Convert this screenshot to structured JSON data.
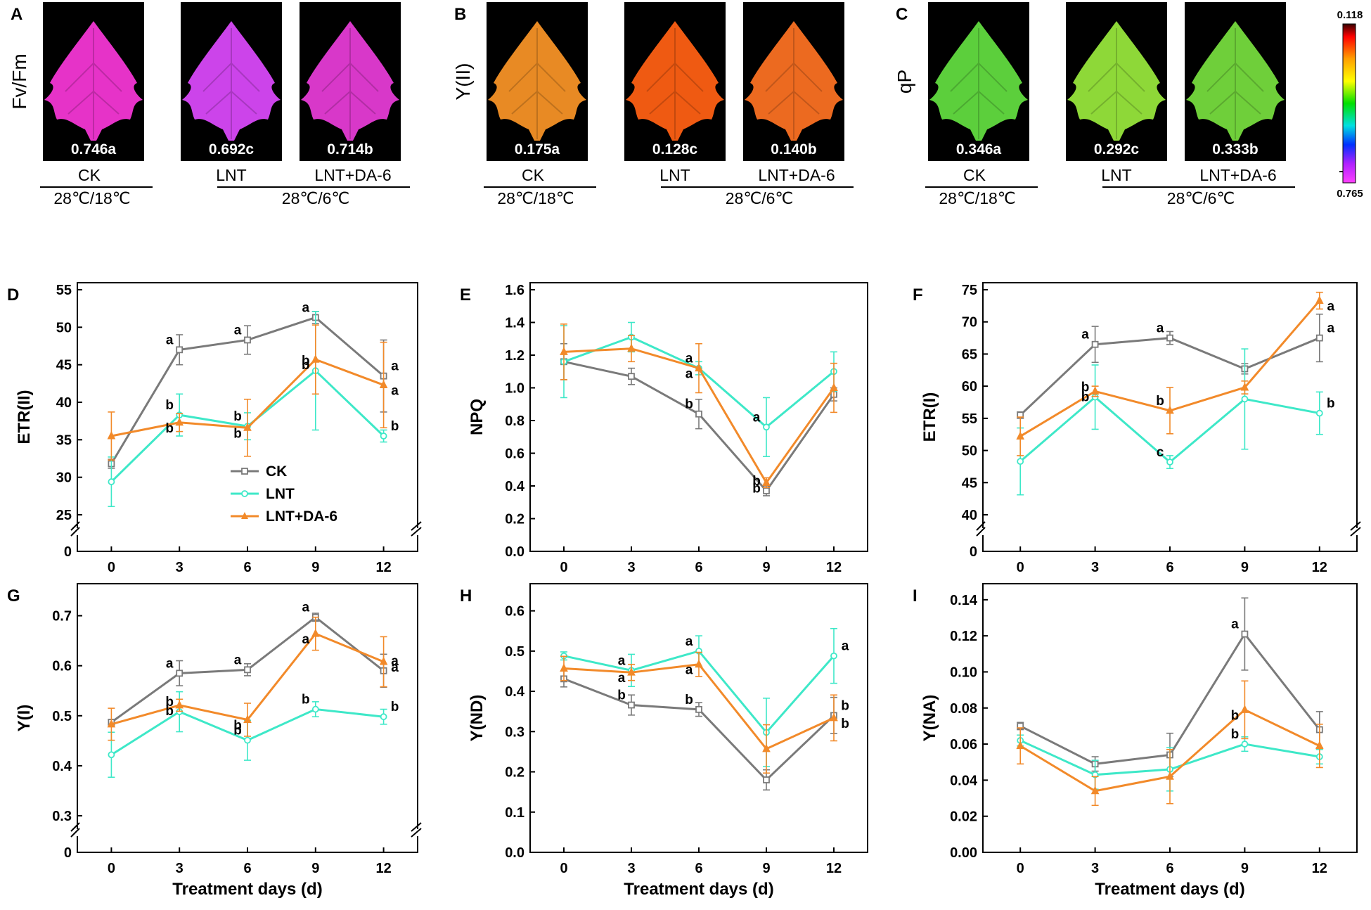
{
  "colors": {
    "CK": "#7a7a7a",
    "LNT": "#3ee8c8",
    "LNT+DA-6": "#f28a2a"
  },
  "images": {
    "panels": [
      {
        "label": "A",
        "title": "Fv/Fm",
        "values": [
          "0.746a",
          "0.692c",
          "0.714b"
        ],
        "fills": [
          "#e633c8",
          "#cc44ea",
          "#d838c9"
        ]
      },
      {
        "label": "B",
        "title": "Y(II)",
        "values": [
          "0.175a",
          "0.128c",
          "0.140b"
        ],
        "fills": [
          "#e88a24",
          "#ef5a12",
          "#ec6a20"
        ]
      },
      {
        "label": "C",
        "title": "qP",
        "values": [
          "0.346a",
          "0.292c",
          "0.333b"
        ],
        "fills": [
          "#5ccf3c",
          "#8ed838",
          "#6fcf3a"
        ]
      }
    ],
    "conditions": {
      "ck": "CK",
      "lnt": "LNT",
      "lntda": "LNT+DA-6",
      "ck_temp": "28℃/18℃",
      "lnt_temp": "28℃/6℃"
    },
    "colorbar": {
      "top": "0.118",
      "bottom": "0.765"
    }
  },
  "chart_data": [
    {
      "type": "line",
      "label": "D",
      "ylabel": "ETR(II)",
      "xlabel": "",
      "x": [
        0,
        3,
        6,
        9,
        12
      ],
      "xticks": [
        "0",
        "3",
        "6",
        "9",
        "12"
      ],
      "ylim": [
        25,
        55
      ],
      "yticks": [
        25,
        30,
        35,
        40,
        45,
        50,
        55
      ],
      "axis_break": true,
      "legend": [
        "CK",
        "LNT",
        "LNT+DA-6"
      ],
      "legend_position": "lower-middle",
      "series": [
        {
          "name": "CK",
          "values": [
            31.8,
            47.0,
            48.3,
            51.3,
            43.5
          ],
          "errors": [
            0.6,
            2.0,
            1.9,
            0.8,
            4.8
          ],
          "sig": [
            "",
            "a",
            "a",
            "a",
            "a"
          ]
        },
        {
          "name": "LNT",
          "values": [
            29.4,
            38.3,
            36.8,
            44.2,
            35.5
          ],
          "errors": [
            3.3,
            2.8,
            1.8,
            7.9,
            0.8
          ],
          "sig": [
            "",
            "b",
            "b",
            "b",
            "b"
          ]
        },
        {
          "name": "LNT+DA-6",
          "values": [
            35.5,
            37.3,
            36.6,
            45.7,
            42.3
          ],
          "errors": [
            3.2,
            1.2,
            3.8,
            4.6,
            5.7
          ],
          "sig": [
            "",
            "b",
            "b",
            "b",
            "a"
          ]
        }
      ]
    },
    {
      "type": "line",
      "label": "E",
      "ylabel": "NPQ",
      "xlabel": "",
      "x": [
        0,
        3,
        6,
        9,
        12
      ],
      "xticks": [
        "0",
        "3",
        "6",
        "9",
        "12"
      ],
      "ylim": [
        0.0,
        1.6
      ],
      "yticks": [
        "0.0",
        "0.2",
        "0.4",
        "0.6",
        "0.8",
        "1.0",
        "1.2",
        "1.4",
        "1.6"
      ],
      "axis_break": false,
      "series": [
        {
          "name": "CK",
          "values": [
            1.16,
            1.07,
            0.84,
            0.37,
            0.96
          ],
          "errors": [
            0.11,
            0.05,
            0.09,
            0.03,
            0.04
          ],
          "sig": [
            "",
            "",
            "b",
            "b",
            ""
          ]
        },
        {
          "name": "LNT",
          "values": [
            1.16,
            1.31,
            1.12,
            0.76,
            1.1
          ],
          "errors": [
            0.22,
            0.09,
            0.04,
            0.18,
            0.12
          ],
          "sig": [
            "",
            "",
            "a",
            "a",
            ""
          ]
        },
        {
          "name": "LNT+DA-6",
          "values": [
            1.22,
            1.24,
            1.12,
            0.42,
            1.0
          ],
          "errors": [
            0.17,
            0.08,
            0.15,
            0.03,
            0.15
          ],
          "sig": [
            "",
            "",
            "a",
            "b",
            ""
          ]
        }
      ]
    },
    {
      "type": "line",
      "label": "F",
      "ylabel": "ETR(I)",
      "xlabel": "",
      "x": [
        0,
        3,
        6,
        9,
        12
      ],
      "xticks": [
        "0",
        "3",
        "6",
        "9",
        "12"
      ],
      "ylim": [
        40,
        75
      ],
      "yticks": [
        40,
        45,
        50,
        55,
        60,
        65,
        70,
        75
      ],
      "axis_break": true,
      "series": [
        {
          "name": "CK",
          "values": [
            55.5,
            66.5,
            67.5,
            62.7,
            67.5
          ],
          "errors": [
            0.5,
            2.8,
            1.0,
            0.8,
            3.7
          ],
          "sig": [
            "",
            "a",
            "a",
            "",
            "a"
          ]
        },
        {
          "name": "LNT",
          "values": [
            48.3,
            58.3,
            48.2,
            58.0,
            55.8
          ],
          "errors": [
            5.2,
            5.0,
            1.0,
            7.8,
            3.3
          ],
          "sig": [
            "",
            "b",
            "c",
            "",
            "b"
          ]
        },
        {
          "name": "LNT+DA-6",
          "values": [
            52.2,
            59.2,
            56.2,
            59.8,
            73.3
          ],
          "errors": [
            3.0,
            0.8,
            3.6,
            1.0,
            1.3
          ],
          "sig": [
            "",
            "b",
            "b",
            "",
            "a"
          ]
        }
      ]
    },
    {
      "type": "line",
      "label": "G",
      "ylabel": "Y(I)",
      "xlabel": "Treatment days (d)",
      "x": [
        0,
        3,
        6,
        9,
        12
      ],
      "xticks": [
        "0",
        "3",
        "6",
        "9",
        "12"
      ],
      "ylim": [
        0.3,
        0.75
      ],
      "yticks": [
        "0.3",
        "0.4",
        "0.5",
        "0.6",
        "0.7"
      ],
      "axis_break": true,
      "series": [
        {
          "name": "CK",
          "values": [
            0.487,
            0.585,
            0.592,
            0.697,
            0.59
          ],
          "errors": [
            0.005,
            0.025,
            0.012,
            0.008,
            0.033
          ],
          "sig": [
            "",
            "a",
            "a",
            "a",
            "a"
          ]
        },
        {
          "name": "LNT",
          "values": [
            0.422,
            0.508,
            0.451,
            0.513,
            0.498
          ],
          "errors": [
            0.045,
            0.04,
            0.04,
            0.015,
            0.015
          ],
          "sig": [
            "",
            "b",
            "b",
            "b",
            "b"
          ]
        },
        {
          "name": "LNT+DA-6",
          "values": [
            0.483,
            0.521,
            0.492,
            0.664,
            0.608
          ],
          "errors": [
            0.032,
            0.012,
            0.033,
            0.033,
            0.05
          ],
          "sig": [
            "",
            "b",
            "b",
            "a",
            "a"
          ]
        }
      ]
    },
    {
      "type": "line",
      "label": "H",
      "ylabel": "Y(ND)",
      "xlabel": "Treatment days (d)",
      "x": [
        0,
        3,
        6,
        9,
        12
      ],
      "xticks": [
        "0",
        "3",
        "6",
        "9",
        "12"
      ],
      "ylim": [
        0.0,
        0.65
      ],
      "yticks": [
        "0.0",
        "0.1",
        "0.2",
        "0.3",
        "0.4",
        "0.5",
        "0.6"
      ],
      "axis_break": false,
      "series": [
        {
          "name": "CK",
          "values": [
            0.431,
            0.366,
            0.355,
            0.18,
            0.34
          ],
          "errors": [
            0.02,
            0.025,
            0.017,
            0.025,
            0.045
          ],
          "sig": [
            "",
            "b",
            "b",
            "",
            "b"
          ]
        },
        {
          "name": "LNT",
          "values": [
            0.488,
            0.452,
            0.5,
            0.298,
            0.488
          ],
          "errors": [
            0.01,
            0.04,
            0.038,
            0.085,
            0.068
          ],
          "sig": [
            "",
            "a",
            "a",
            "",
            "a"
          ]
        },
        {
          "name": "LNT+DA-6",
          "values": [
            0.457,
            0.447,
            0.467,
            0.257,
            0.334
          ],
          "errors": [
            0.03,
            0.02,
            0.03,
            0.06,
            0.057
          ],
          "sig": [
            "",
            "a",
            "a",
            "",
            "b"
          ]
        }
      ]
    },
    {
      "type": "line",
      "label": "I",
      "ylabel": "Y(NA)",
      "xlabel": "Treatment days (d)",
      "x": [
        0,
        3,
        6,
        9,
        12
      ],
      "xticks": [
        "0",
        "3",
        "6",
        "9",
        "12"
      ],
      "ylim": [
        0.0,
        0.145
      ],
      "yticks": [
        "0.00",
        "0.02",
        "0.04",
        "0.06",
        "0.08",
        "0.10",
        "0.12",
        "0.14"
      ],
      "axis_break": false,
      "series": [
        {
          "name": "CK",
          "values": [
            0.07,
            0.049,
            0.054,
            0.121,
            0.068
          ],
          "errors": [
            0.002,
            0.004,
            0.012,
            0.02,
            0.01
          ],
          "sig": [
            "",
            "",
            "",
            "a",
            ""
          ]
        },
        {
          "name": "LNT",
          "values": [
            0.062,
            0.043,
            0.046,
            0.06,
            0.053
          ],
          "errors": [
            0.003,
            0.008,
            0.012,
            0.004,
            0.004
          ],
          "sig": [
            "",
            "",
            "",
            "b",
            ""
          ]
        },
        {
          "name": "LNT+DA-6",
          "values": [
            0.059,
            0.034,
            0.042,
            0.079,
            0.059
          ],
          "errors": [
            0.01,
            0.008,
            0.015,
            0.016,
            0.012
          ],
          "sig": [
            "",
            "",
            "",
            "b",
            ""
          ]
        }
      ]
    }
  ]
}
